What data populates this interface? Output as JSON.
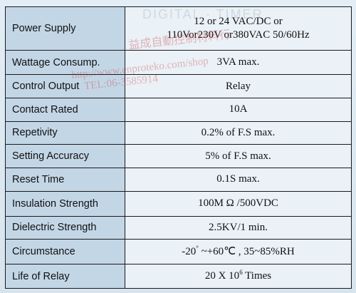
{
  "spec_table": {
    "rows": [
      {
        "label": "Power Supply",
        "value_line1": "12 or 24 VAC/DC or",
        "value_line2": "110Vor230V or380VAC 50/60Hz"
      },
      {
        "label": "Wattage Consump.",
        "value": "3VA max."
      },
      {
        "label": "Control Output",
        "value": "Relay"
      },
      {
        "label": "Contact Rated",
        "value": "10A"
      },
      {
        "label": "Repetivity",
        "value": "0.2% of F.S max."
      },
      {
        "label": "Setting Accuracy",
        "value": "5% of F.S max."
      },
      {
        "label": "Reset Time",
        "value": "0.1S max."
      },
      {
        "label": "Insulation Strength",
        "value": "100M Ω /500VDC"
      },
      {
        "label": "Dielectric Strength",
        "value": "2.5KV/1 min."
      },
      {
        "label": "Circumstance",
        "value_pre": "-20",
        "value_sup1": "°",
        "value_mid": " ~+60",
        "value_unit": "℃",
        "value_post": " , 35~85%RH"
      },
      {
        "label": "Life of Relay",
        "value_pre": "20 X 10",
        "value_sup": "6",
        "value_post": " Times"
      }
    ]
  },
  "watermark": {
    "company": "益成自動控制材料行",
    "url": "http://www.enproteko.com/shop",
    "tel": "TEL:06-3585914"
  }
}
